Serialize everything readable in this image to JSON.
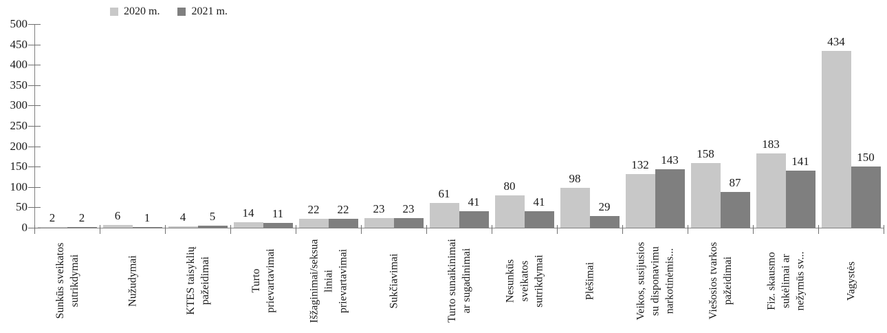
{
  "chart_data": {
    "type": "bar",
    "title": "",
    "xlabel": "",
    "ylabel": "",
    "ylim": [
      0,
      500
    ],
    "yticks": [
      0,
      50,
      100,
      150,
      200,
      250,
      300,
      350,
      400,
      450,
      500
    ],
    "grid": false,
    "legend_position": "top-left",
    "data_labels": true,
    "categories": [
      [
        "Sunkūs sveikatos",
        "sutrikdymai"
      ],
      [
        "Nužudymai"
      ],
      [
        "KTES taisyklių",
        "pažeidimai"
      ],
      [
        "Turto",
        "prievartavimai"
      ],
      [
        "Išžaginimai/seksua",
        "liniai",
        "prievartavimai"
      ],
      [
        "Sukčiavimai"
      ],
      [
        "Turto sunaikinimai",
        "ar sugadinimai"
      ],
      [
        "Nesunkūs",
        "sveikatos",
        "sutrikdymai"
      ],
      [
        "Plėšimai"
      ],
      [
        "Veikos, susijusios",
        "su disponavimu",
        "narkotinėmis..."
      ],
      [
        "Viešosios tvarkos",
        "pažeidimai"
      ],
      [
        "Fiz. skausmo",
        "sukėlimai ar",
        "nežymūs sv..."
      ],
      [
        "Vagystės"
      ]
    ],
    "series": [
      {
        "name": "2020 m.",
        "color": "#c8c8c8",
        "values": [
          2,
          6,
          4,
          14,
          22,
          23,
          61,
          80,
          98,
          132,
          158,
          183,
          434
        ]
      },
      {
        "name": "2021 m.",
        "color": "#7f7f7f",
        "values": [
          2,
          1,
          5,
          11,
          22,
          23,
          41,
          41,
          29,
          143,
          87,
          141,
          150
        ]
      }
    ]
  },
  "legend": {
    "items": [
      {
        "label": "2020 m.",
        "color": "#c8c8c8"
      },
      {
        "label": "2021 m.",
        "color": "#7f7f7f"
      }
    ]
  },
  "axis": {
    "line_color": "#808080",
    "tick_color": "#6e6e6e",
    "text_color": "#1a1a1a"
  }
}
